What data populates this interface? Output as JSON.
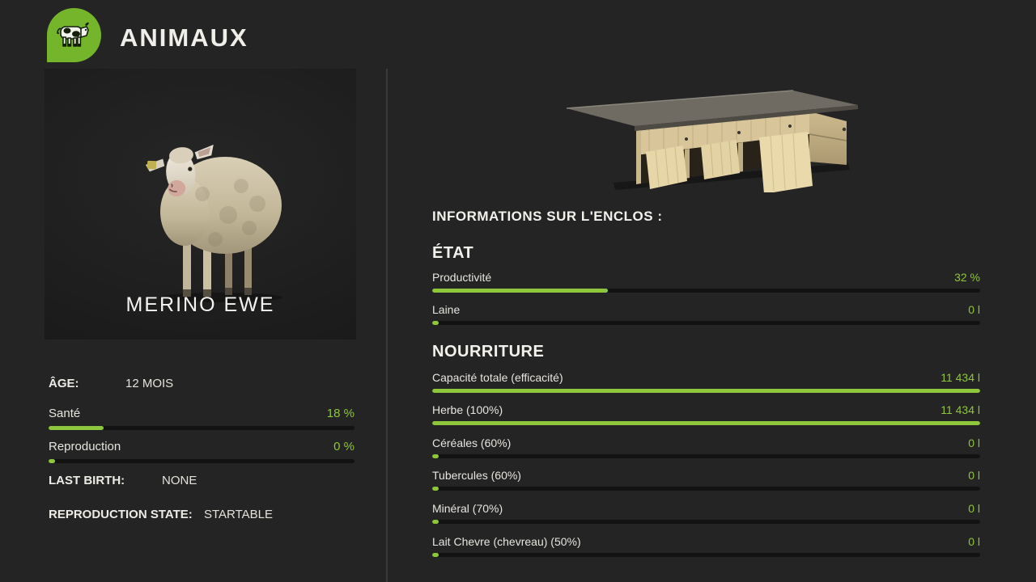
{
  "colors": {
    "accent": "#8ec63c",
    "logo-green": "#74b52c",
    "bg": "#242424"
  },
  "header": {
    "title": "ANIMAUX",
    "logo_icon": "cow-icon"
  },
  "animal": {
    "name": "MERINO EWE",
    "image": "merino-sheep-illustration",
    "age_label": "ÂGE:",
    "age_value": "12 MOIS",
    "stats": [
      {
        "label": "Santé",
        "value": "18 %",
        "fill_pct": 18
      },
      {
        "label": "Reproduction",
        "value": "0 %",
        "fill_pct": 2.2
      }
    ],
    "last_birth_label": "LAST BIRTH:",
    "last_birth_value": "NONE",
    "reproduction_state_label": "REPRODUCTION STATE:",
    "reproduction_state_value": "STARTABLE"
  },
  "enclosure": {
    "title": "INFORMATIONS SUR L'ENCLOS :",
    "image": "wooden-shelter-illustration",
    "sections": [
      {
        "heading": "ÉTAT",
        "rows": [
          {
            "label": "Productivité",
            "value": "32 %",
            "fill_pct": 32
          },
          {
            "label": "Laine",
            "value": "0 l",
            "fill_pct": 1.2
          }
        ]
      },
      {
        "heading": "NOURRITURE",
        "rows": [
          {
            "label": "Capacité totale (efficacité)",
            "value": "11 434 l",
            "fill_pct": 100
          },
          {
            "label": "Herbe (100%)",
            "value": "11 434 l",
            "fill_pct": 100
          },
          {
            "label": "Céréales (60%)",
            "value": "0 l",
            "fill_pct": 1.2
          },
          {
            "label": "Tubercules (60%)",
            "value": "0 l",
            "fill_pct": 1.2
          },
          {
            "label": "Minéral (70%)",
            "value": "0 l",
            "fill_pct": 1.2
          },
          {
            "label": "Lait Chevre (chevreau) (50%)",
            "value": "0 l",
            "fill_pct": 1.2
          }
        ]
      }
    ]
  }
}
